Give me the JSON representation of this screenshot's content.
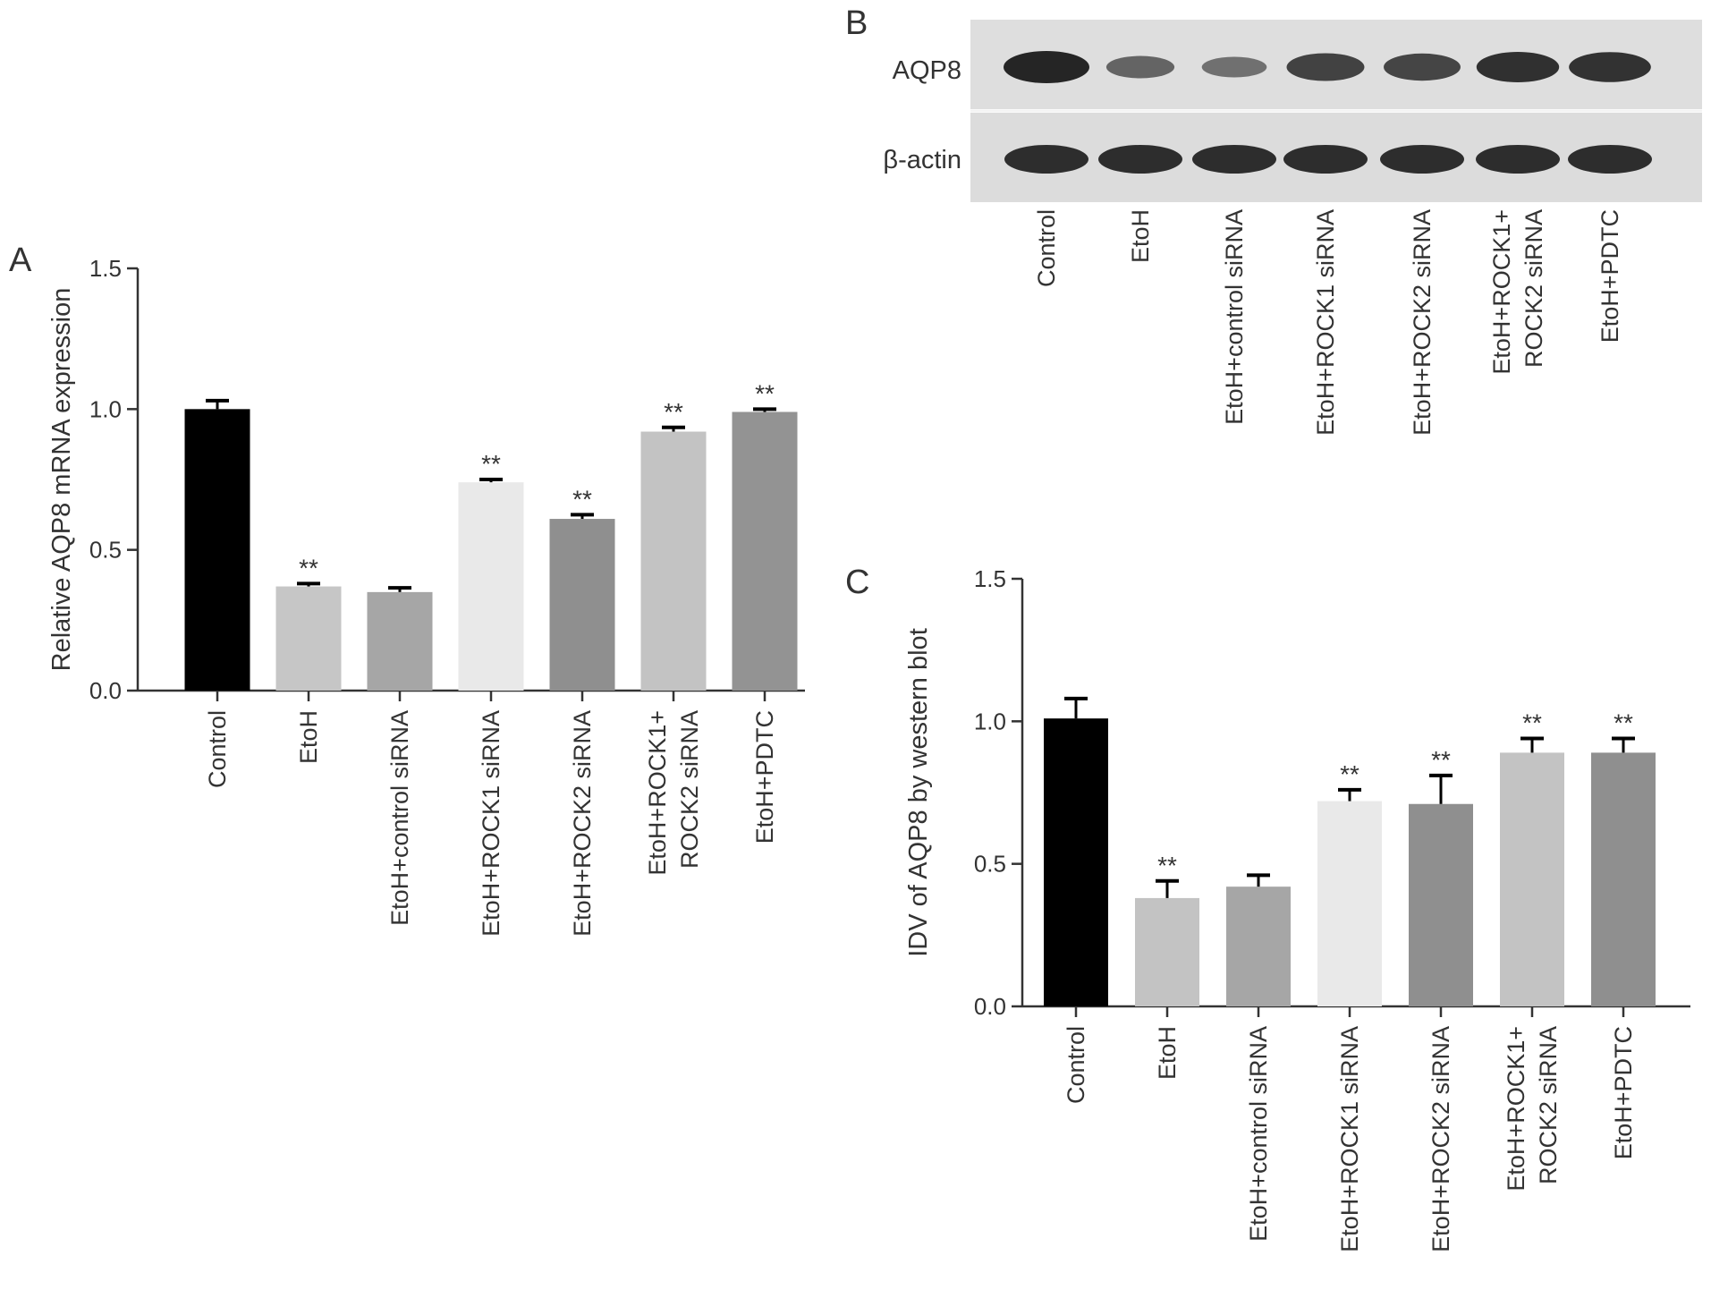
{
  "panels": {
    "a": "A",
    "b": "B",
    "c": "C"
  },
  "blot": {
    "rows": [
      "AQP8",
      "β-actin"
    ],
    "lanes": [
      [
        "Control"
      ],
      [
        "EtoH"
      ],
      [
        "EtoH+control siRNA"
      ],
      [
        "EtoH+ROCK1 siRNA"
      ],
      [
        "EtoH+ROCK2 siRNA"
      ],
      [
        "EtoH+ROCK1+",
        "ROCK2 siRNA"
      ],
      [
        "EtoH+PDTC"
      ]
    ],
    "band_intensity": {
      "AQP8": [
        1.0,
        0.45,
        0.35,
        0.75,
        0.72,
        0.9,
        0.88
      ],
      "β-actin": [
        1.0,
        1.0,
        1.0,
        1.0,
        1.0,
        1.0,
        1.0
      ]
    }
  },
  "chart_data": [
    {
      "id": "A",
      "type": "bar",
      "categories": [
        [
          "Control"
        ],
        [
          "EtoH"
        ],
        [
          "EtoH+control siRNA"
        ],
        [
          "EtoH+ROCK1 siRNA"
        ],
        [
          "EtoH+ROCK2 siRNA"
        ],
        [
          "EtoH+ROCK1+",
          "ROCK2 siRNA"
        ],
        [
          "EtoH+PDTC"
        ]
      ],
      "values": [
        1.0,
        0.37,
        0.35,
        0.74,
        0.61,
        0.92,
        0.99
      ],
      "errors": [
        0.03,
        0.01,
        0.015,
        0.01,
        0.015,
        0.015,
        0.01
      ],
      "significance": [
        "",
        "**",
        "",
        "**",
        "**",
        "**",
        "**"
      ],
      "colors": [
        "#000000",
        "#c6c6c6",
        "#a6a6a6",
        "#e9e9e9",
        "#8f8f8f",
        "#c3c3c3",
        "#939393"
      ],
      "ylabel": "Relative AQP8 mRNA expression",
      "ylim": [
        0,
        1.5
      ],
      "yticks": [
        "0.0",
        "0.5",
        "1.0",
        "1.5"
      ],
      "grid": false
    },
    {
      "id": "C",
      "type": "bar",
      "categories": [
        [
          "Control"
        ],
        [
          "EtoH"
        ],
        [
          "EtoH+control siRNA"
        ],
        [
          "EtoH+ROCK1 siRNA"
        ],
        [
          "EtoH+ROCK2 siRNA"
        ],
        [
          "EtoH+ROCK1+",
          "ROCK2 siRNA"
        ],
        [
          "EtoH+PDTC"
        ]
      ],
      "values": [
        1.01,
        0.38,
        0.42,
        0.72,
        0.71,
        0.89,
        0.89
      ],
      "errors": [
        0.07,
        0.06,
        0.04,
        0.04,
        0.1,
        0.05,
        0.05
      ],
      "significance": [
        "",
        "**",
        "",
        "**",
        "**",
        "**",
        "**"
      ],
      "colors": [
        "#000000",
        "#c3c3c3",
        "#a6a6a6",
        "#e9e9e9",
        "#8f8f8f",
        "#c3c3c3",
        "#8f8f8f"
      ],
      "ylabel": "IDV of AQP8 by western blot",
      "ylim": [
        0,
        1.5
      ],
      "yticks": [
        "0.0",
        "0.5",
        "1.0",
        "1.5"
      ],
      "grid": false
    }
  ]
}
